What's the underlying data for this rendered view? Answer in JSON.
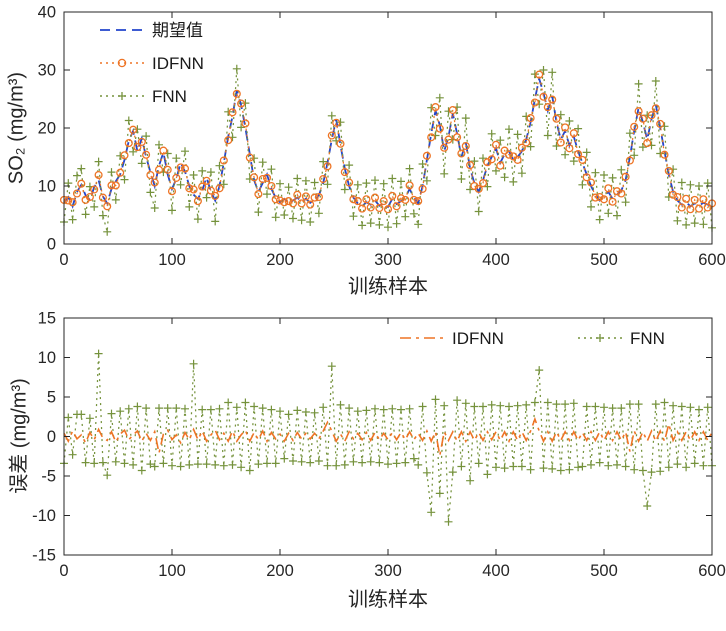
{
  "figure": {
    "background": "#ffffff",
    "axis_color": "#262626"
  },
  "chart_data": [
    {
      "type": "line",
      "name": "so2",
      "title": "",
      "xlabel": "训练样本",
      "ylabel": "SO₂ (mg/m³)",
      "xlim": [
        0,
        600
      ],
      "ylim": [
        0,
        40
      ],
      "xticks": [
        0,
        100,
        200,
        300,
        400,
        500,
        600
      ],
      "yticks": [
        0,
        10,
        20,
        30,
        40
      ],
      "grid": false,
      "legend_position": "northwest",
      "legend_order": [
        0,
        2,
        1
      ],
      "x": {
        "start": 0,
        "step": 4
      },
      "series": [
        {
          "name": "期望值",
          "id": "expected",
          "color": "#2244cc",
          "line": "dashed",
          "marker": "none",
          "values": [
            7.2,
            8.1,
            6.5,
            9.0,
            10.2,
            8.4,
            7.6,
            9.8,
            11.0,
            8.2,
            7.0,
            9.5,
            10.8,
            12.0,
            14.5,
            17.8,
            19.5,
            16.0,
            18.2,
            15.0,
            12.4,
            10.0,
            13.5,
            15.8,
            12.0,
            9.5,
            11.2,
            14.0,
            12.5,
            10.0,
            8.5,
            7.8,
            9.2,
            11.5,
            9.0,
            7.5,
            10.0,
            14.0,
            18.5,
            22.0,
            26.5,
            24.0,
            20.0,
            15.5,
            11.0,
            9.0,
            10.5,
            12.0,
            9.5,
            8.0,
            7.2,
            7.8,
            7.0,
            7.5,
            8.0,
            7.3,
            7.8,
            7.1,
            7.6,
            8.4,
            10.5,
            14.0,
            18.0,
            21.5,
            17.0,
            13.0,
            10.0,
            8.0,
            7.0,
            6.5,
            7.2,
            6.8,
            7.5,
            6.6,
            7.0,
            6.4,
            7.8,
            6.9,
            7.4,
            8.0,
            9.5,
            8.0,
            7.0,
            10.0,
            14.5,
            19.0,
            23.0,
            20.5,
            16.0,
            18.5,
            22.5,
            19.0,
            15.0,
            17.5,
            13.0,
            10.5,
            9.0,
            11.0,
            13.5,
            15.0,
            16.5,
            14.0,
            15.5,
            16.0,
            14.5,
            15.0,
            16.0,
            18.0,
            21.0,
            25.0,
            28.5,
            26.0,
            23.0,
            25.5,
            21.0,
            18.0,
            19.5,
            17.0,
            18.5,
            16.0,
            14.0,
            12.0,
            10.0,
            8.5,
            7.5,
            8.2,
            9.0,
            7.8,
            8.5,
            9.2,
            11.0,
            15.0,
            19.5,
            23.5,
            21.0,
            18.0,
            21.5,
            24.0,
            20.0,
            16.0,
            12.0,
            9.0,
            7.5,
            6.8,
            7.2,
            6.5,
            7.0,
            6.6,
            7.1,
            6.8,
            6.5
          ]
        },
        {
          "name": "FNN",
          "id": "fnn",
          "color": "#75923c",
          "line": "dotted",
          "marker": "plus",
          "values": [
            3.8,
            10.5,
            4.2,
            11.8,
            13.0,
            5.1,
            9.9,
            6.4,
            14.2,
            4.9,
            2.1,
            12.4,
            7.6,
            15.2,
            11.1,
            21.3,
            15.9,
            19.8,
            13.9,
            18.6,
            8.9,
            6.2,
            17.1,
            12.4,
            15.6,
            5.8,
            14.8,
            10.2,
            16.0,
            6.4,
            11.9,
            4.3,
            12.6,
            8.0,
            12.4,
            3.9,
            13.5,
            10.3,
            22.8,
            18.4,
            30.2,
            20.1,
            24.3,
            11.2,
            14.8,
            5.5,
            14.1,
            8.6,
            12.9,
            4.6,
            10.4,
            5.0,
            9.8,
            4.4,
            11.3,
            4.1,
            10.9,
            3.8,
            10.6,
            5.3,
            14.2,
            10.3,
            22.1,
            17.8,
            21.0,
            9.4,
            13.6,
            4.8,
            10.2,
            3.2,
            10.5,
            3.6,
            11.0,
            3.3,
            10.4,
            2.9,
            11.3,
            3.5,
            10.8,
            4.7,
            13.0,
            5.2,
            3.4,
            13.8,
            10.9,
            23.5,
            18.7,
            25.2,
            12.1,
            22.9,
            18.0,
            23.6,
            11.2,
            21.7,
            9.4,
            14.3,
            5.6,
            14.8,
            9.9,
            19.0,
            12.6,
            17.9,
            11.5,
            19.8,
            10.7,
            18.9,
            12.2,
            22.0,
            16.8,
            29.3,
            24.1,
            30.0,
            18.7,
            29.6,
            16.9,
            22.3,
            15.4,
            21.2,
            14.3,
            19.9,
            10.2,
            15.8,
            6.4,
            12.3,
            4.2,
            11.9,
            5.3,
            11.4,
            4.9,
            12.8,
            7.2,
            19.1,
            15.3,
            27.6,
            16.7,
            22.2,
            17.0,
            28.1,
            15.6,
            20.3,
            8.1,
            12.9,
            4.0,
            10.6,
            3.3,
            10.2,
            3.6,
            10.0,
            3.4,
            10.5,
            2.8
          ]
        },
        {
          "name": "IDFNN",
          "id": "idfnn",
          "color": "#ee7425",
          "line": "dotted",
          "marker": "circle",
          "values": [
            7.6,
            7.5,
            7.2,
            8.7,
            10.4,
            7.6,
            8.1,
            9.4,
            11.9,
            8.0,
            6.5,
            10.1,
            10.1,
            12.3,
            15.3,
            17.4,
            19.7,
            16.7,
            17.6,
            15.4,
            11.9,
            10.6,
            12.8,
            16.1,
            12.8,
            9.1,
            11.4,
            13.2,
            13.0,
            9.6,
            9.4,
            7.4,
            9.9,
            10.9,
            9.2,
            8.3,
            9.6,
            14.4,
            17.9,
            22.7,
            25.9,
            24.2,
            20.8,
            14.9,
            11.5,
            8.6,
            11.2,
            11.4,
            10.0,
            7.7,
            7.5,
            7.2,
            7.4,
            7.0,
            8.5,
            7.0,
            8.2,
            6.8,
            8.0,
            8.1,
            11.2,
            13.4,
            18.7,
            20.9,
            17.3,
            12.4,
            10.6,
            7.7,
            7.4,
            6.1,
            7.7,
            6.3,
            8.0,
            6.2,
            7.4,
            6.0,
            8.3,
            6.5,
            7.9,
            7.6,
            10.1,
            7.6,
            7.4,
            9.5,
            15.2,
            18.4,
            23.6,
            19.9,
            16.6,
            18.0,
            23.1,
            18.4,
            15.6,
            16.9,
            13.6,
            10.0,
            9.5,
            10.5,
            14.1,
            14.6,
            17.1,
            13.5,
            16.1,
            15.4,
            15.1,
            14.5,
            16.6,
            17.5,
            21.7,
            24.4,
            29.2,
            25.4,
            23.6,
            24.9,
            21.6,
            17.5,
            20.1,
            16.5,
            19.1,
            15.5,
            14.5,
            11.5,
            10.6,
            8.0,
            8.1,
            7.7,
            9.6,
            7.3,
            9.1,
            8.7,
            11.6,
            14.4,
            20.2,
            22.9,
            21.6,
            17.4,
            22.2,
            23.4,
            20.7,
            15.4,
            12.6,
            8.5,
            8.1,
            6.3,
            7.8,
            6.0,
            7.6,
            6.1,
            7.7,
            6.3,
            7.0
          ]
        }
      ]
    },
    {
      "type": "line",
      "name": "error",
      "title": "",
      "xlabel": "训练样本",
      "ylabel": "误差 (mg/m³)",
      "xlim": [
        0,
        600
      ],
      "ylim": [
        -15,
        15
      ],
      "xticks": [
        0,
        100,
        200,
        300,
        400,
        500,
        600
      ],
      "yticks": [
        -15,
        -10,
        -5,
        0,
        5,
        10,
        15
      ],
      "grid": false,
      "legend_position": "northeast",
      "legend_order": [
        1,
        0
      ],
      "x": {
        "start": 0,
        "step": 4
      },
      "series": [
        {
          "name": "FNN",
          "id": "fnn",
          "color": "#75923c",
          "line": "dotted",
          "marker": "plus",
          "values": [
            -3.4,
            2.4,
            -2.3,
            2.8,
            2.8,
            -3.3,
            2.3,
            -3.4,
            10.5,
            -3.3,
            -4.9,
            2.9,
            -3.2,
            3.2,
            -3.4,
            3.5,
            -3.6,
            3.8,
            -4.3,
            3.6,
            -3.5,
            -3.8,
            3.6,
            -3.4,
            3.6,
            -3.7,
            3.6,
            -3.8,
            3.5,
            -3.6,
            9.2,
            -3.5,
            3.4,
            -3.5,
            3.4,
            -3.6,
            3.5,
            -3.7,
            4.3,
            -3.6,
            3.7,
            -3.9,
            4.3,
            -4.3,
            3.8,
            -3.5,
            3.6,
            -3.4,
            3.4,
            -3.4,
            3.2,
            -2.8,
            2.8,
            -3.1,
            3.3,
            -3.2,
            3.1,
            -3.3,
            3.0,
            -3.1,
            3.7,
            -3.7,
            8.9,
            -3.7,
            4.0,
            -3.6,
            3.6,
            -3.2,
            3.2,
            -3.3,
            3.3,
            -3.2,
            3.5,
            -3.3,
            3.4,
            -3.5,
            3.5,
            -3.4,
            3.4,
            -3.3,
            3.5,
            -2.8,
            -3.6,
            3.8,
            -4.6,
            -9.6,
            4.7,
            -7.2,
            3.9,
            -10.8,
            -4.5,
            4.6,
            -3.8,
            4.2,
            -5.6,
            3.8,
            -3.4,
            3.8,
            -4.8,
            4.0,
            -3.9,
            3.9,
            -4.0,
            3.8,
            -3.8,
            3.9,
            -3.8,
            4.0,
            -4.2,
            4.3,
            8.4,
            -4.0,
            4.3,
            -4.1,
            4.1,
            -4.3,
            4.1,
            -4.2,
            4.2,
            -3.9,
            -3.8,
            3.8,
            -3.6,
            3.8,
            -3.3,
            3.7,
            -3.7,
            3.6,
            -3.6,
            3.6,
            -3.8,
            4.1,
            -4.2,
            4.1,
            -4.3,
            -8.8,
            -4.5,
            4.1,
            -4.4,
            4.3,
            -3.9,
            3.9,
            -3.5,
            3.8,
            -3.9,
            3.7,
            -3.4,
            3.4,
            -3.7,
            3.7,
            -3.7
          ]
        },
        {
          "name": "IDFNN",
          "id": "idfnn",
          "color": "#ee7425",
          "line": "dashdot",
          "marker": "none",
          "values": [
            0.4,
            -0.6,
            0.7,
            -0.3,
            0.2,
            -0.8,
            0.5,
            -0.4,
            0.9,
            -0.2,
            -0.5,
            0.6,
            -0.7,
            0.3,
            0.8,
            -0.4,
            0.2,
            0.7,
            -0.6,
            0.4,
            -0.5,
            0.6,
            -2.1,
            0.3,
            0.8,
            -0.4,
            0.2,
            -0.8,
            0.5,
            -0.4,
            0.9,
            -0.4,
            0.7,
            -0.6,
            0.2,
            0.8,
            -0.4,
            0.4,
            -0.6,
            0.7,
            -0.6,
            0.2,
            0.8,
            -0.6,
            0.5,
            -0.4,
            0.7,
            -0.6,
            0.5,
            -0.3,
            0.3,
            -0.6,
            0.4,
            -0.5,
            0.5,
            -0.3,
            0.4,
            -0.3,
            0.4,
            -0.3,
            0.7,
            1.8,
            0.7,
            -0.6,
            0.3,
            -0.6,
            0.6,
            -0.3,
            0.4,
            -0.4,
            0.5,
            -0.5,
            0.5,
            -0.4,
            0.4,
            -0.4,
            0.5,
            -0.4,
            0.5,
            -0.4,
            0.6,
            -0.4,
            0.4,
            -0.5,
            0.7,
            -0.6,
            0.6,
            -2.4,
            0.6,
            -0.5,
            0.6,
            -0.6,
            0.6,
            -0.6,
            0.6,
            -0.5,
            0.5,
            -0.5,
            0.6,
            -0.4,
            0.6,
            -0.5,
            0.6,
            -0.6,
            0.6,
            -0.5,
            0.6,
            -0.5,
            0.7,
            2.2,
            0.7,
            -0.6,
            0.6,
            -0.6,
            0.6,
            -0.5,
            0.6,
            -0.5,
            0.6,
            -0.5,
            0.5,
            -0.5,
            0.6,
            -0.5,
            0.6,
            -0.5,
            0.6,
            -0.5,
            0.6,
            -0.5,
            0.6,
            -1.9,
            0.7,
            -0.6,
            0.6,
            -0.6,
            0.7,
            -0.6,
            0.7,
            -0.6,
            1.6,
            -0.5,
            0.6,
            -0.5,
            0.6,
            -0.5,
            0.6,
            -0.5,
            0.6,
            -0.5,
            0.5
          ]
        }
      ]
    }
  ]
}
